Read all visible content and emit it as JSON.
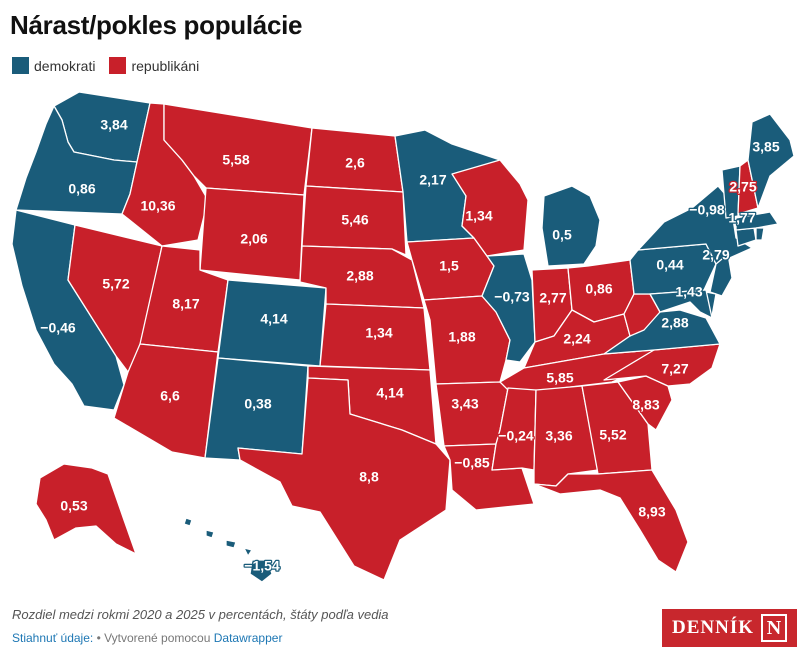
{
  "title": "Nárast/pokles populácie",
  "legend": {
    "items": [
      {
        "label": "demokrati",
        "color": "#1a5c7a"
      },
      {
        "label": "republikáni",
        "color": "#c8202a"
      }
    ]
  },
  "map": {
    "note_bar_color": "#ffffff",
    "states": [
      {
        "id": "WA",
        "value": "3,84",
        "party": "dem"
      },
      {
        "id": "OR",
        "value": "0,86",
        "party": "dem"
      },
      {
        "id": "CA",
        "value": "−0,46",
        "party": "dem"
      },
      {
        "id": "NV",
        "value": "5,72",
        "party": "rep"
      },
      {
        "id": "ID",
        "value": "10,36",
        "party": "rep"
      },
      {
        "id": "MT",
        "value": "5,58",
        "party": "rep"
      },
      {
        "id": "WY",
        "value": "2,06",
        "party": "rep"
      },
      {
        "id": "UT",
        "value": "8,17",
        "party": "rep"
      },
      {
        "id": "AZ",
        "value": "6,6",
        "party": "rep"
      },
      {
        "id": "CO",
        "value": "4,14",
        "party": "dem"
      },
      {
        "id": "NM",
        "value": "0,38",
        "party": "dem"
      },
      {
        "id": "ND",
        "value": "2,6",
        "party": "rep"
      },
      {
        "id": "SD",
        "value": "5,46",
        "party": "rep"
      },
      {
        "id": "NE",
        "value": "2,88",
        "party": "rep"
      },
      {
        "id": "KS",
        "value": "1,34",
        "party": "rep"
      },
      {
        "id": "OK",
        "value": "4,14",
        "party": "rep"
      },
      {
        "id": "TX",
        "value": "8,8",
        "party": "rep"
      },
      {
        "id": "MN",
        "value": "2,17",
        "party": "dem"
      },
      {
        "id": "IA",
        "value": "1,5",
        "party": "rep"
      },
      {
        "id": "MO",
        "value": "1,88",
        "party": "rep"
      },
      {
        "id": "AR",
        "value": "3,43",
        "party": "rep"
      },
      {
        "id": "LA",
        "value": "−0,85",
        "party": "rep"
      },
      {
        "id": "WI",
        "value": "1,34",
        "party": "rep"
      },
      {
        "id": "IL",
        "value": "−0,73",
        "party": "dem"
      },
      {
        "id": "MI",
        "value": "0,5",
        "party": "dem"
      },
      {
        "id": "IN",
        "value": "2,77",
        "party": "rep"
      },
      {
        "id": "OH",
        "value": "0,86",
        "party": "rep"
      },
      {
        "id": "KY",
        "value": "2,24",
        "party": "rep"
      },
      {
        "id": "TN",
        "value": "5,85",
        "party": "rep"
      },
      {
        "id": "MS",
        "value": "−0,24",
        "party": "rep"
      },
      {
        "id": "AL",
        "value": "3,36",
        "party": "rep"
      },
      {
        "id": "GA",
        "value": "5,52",
        "party": "rep"
      },
      {
        "id": "FL",
        "value": "8,93",
        "party": "rep"
      },
      {
        "id": "SC",
        "value": "8,83",
        "party": "rep"
      },
      {
        "id": "NC",
        "value": "7,27",
        "party": "rep"
      },
      {
        "id": "VA",
        "value": "2,88",
        "party": "dem"
      },
      {
        "id": "WV",
        "value": "",
        "party": "rep"
      },
      {
        "id": "PA",
        "value": "0,44",
        "party": "dem"
      },
      {
        "id": "NY",
        "value": "−0,98",
        "party": "dem"
      },
      {
        "id": "NJ",
        "value": "2,79",
        "party": "dem"
      },
      {
        "id": "DE",
        "value": "1,43",
        "party": "dem"
      },
      {
        "id": "MD",
        "value": "",
        "party": "dem"
      },
      {
        "id": "CT",
        "value": "1,77",
        "party": "dem"
      },
      {
        "id": "MA",
        "value": "",
        "party": "dem"
      },
      {
        "id": "RI",
        "value": "",
        "party": "dem"
      },
      {
        "id": "VT",
        "value": "",
        "party": "dem"
      },
      {
        "id": "NH",
        "value": "2,75",
        "party": "rep"
      },
      {
        "id": "ME",
        "value": "3,85",
        "party": "dem"
      },
      {
        "id": "AK",
        "value": "0,53",
        "party": "rep"
      },
      {
        "id": "HI",
        "value": "−1,54",
        "party": "dem"
      }
    ]
  },
  "note": "Rozdiel medzi rokmi 2020 a 2025 v percentách, štáty podľa vedia",
  "source": {
    "label": "Stiahnuť údaje:",
    "sep": " • Vytvorené pomocou ",
    "link": "Datawrapper"
  },
  "logo": {
    "text": "DENNÍK",
    "mark": "N"
  }
}
